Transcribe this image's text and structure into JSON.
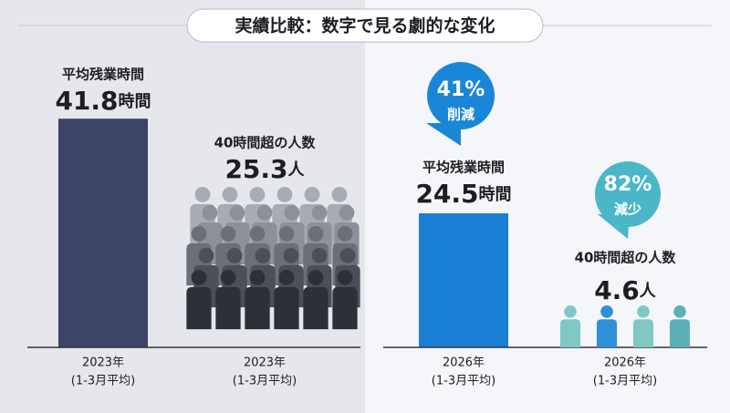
{
  "title": "実績比較：数字で見る劇的な変化",
  "panels": [
    {
      "hours_label": "平均残業時間",
      "hours": 41.8,
      "hours_unit": "時間",
      "people_label": "40時間超の人数",
      "people": 25.3,
      "people_unit": "人",
      "periods": [
        {
          "year": "2023年",
          "note": "(1-3月平均)"
        },
        {
          "year": "2023年",
          "note": "(1-3月平均)"
        }
      ]
    },
    {
      "hours_label": "平均残業時間",
      "hours": 24.5,
      "hours_unit": "時間",
      "people_label": "40時間超の人数",
      "people": 4.6,
      "people_unit": "人",
      "hours_badge": {
        "value": "41%",
        "text": "削減"
      },
      "people_badge": {
        "value": "82%",
        "text": "減少"
      },
      "periods": [
        {
          "year": "2026年",
          "note": "(1-3月平均)"
        },
        {
          "year": "2026年",
          "note": "(1-3月平均)"
        }
      ]
    }
  ]
}
